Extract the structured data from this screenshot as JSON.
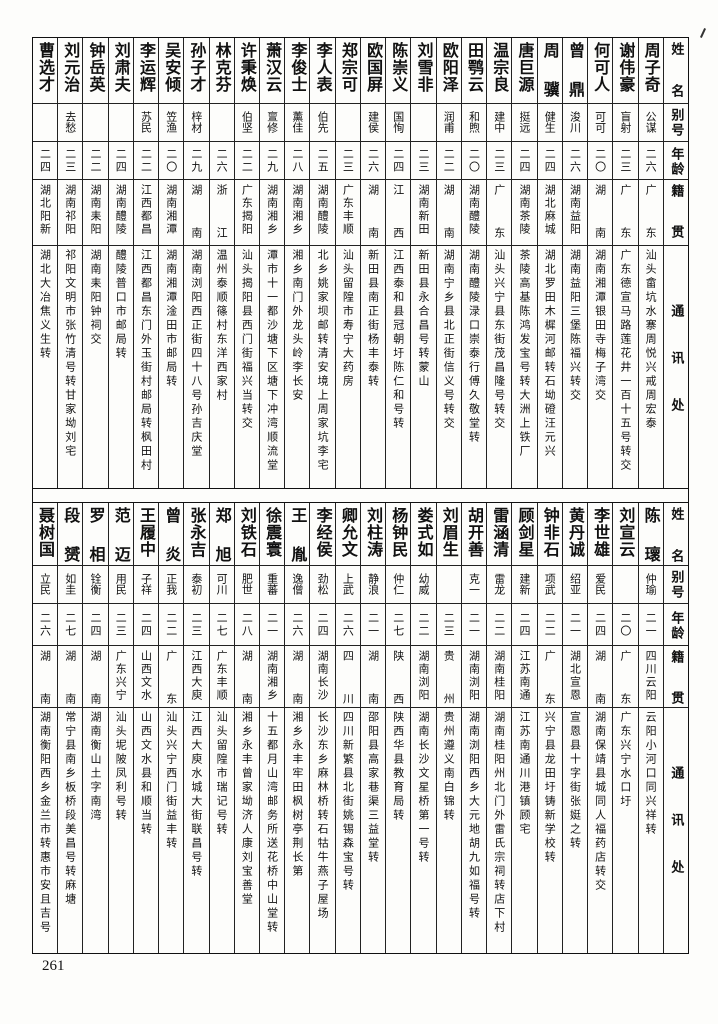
{
  "header": {
    "name": "姓名",
    "alias": "别号",
    "age": "年龄",
    "native": "籍贯",
    "address": "通讯处"
  },
  "tables": [
    {
      "rows": [
        {
          "name": "周子奇",
          "alias": "公谋",
          "age": "二六",
          "native": "广东",
          "address": "汕头畲坑水寨周悦兴戒周宏泰"
        },
        {
          "name": "谢伟豪",
          "alias": "盲射",
          "age": "二三",
          "native": "广东",
          "address": "广东德宣马路莲花井一百十五号转交"
        },
        {
          "name": "何可人",
          "alias": "可可",
          "age": "二〇",
          "native": "湖南",
          "address": "湖南湘潭银田寺梅子湾交"
        },
        {
          "name": "曾鼎",
          "alias": "浚川",
          "age": "二六",
          "native": "湖南益阳",
          "address": "湖南益阳三堡陈福兴转交"
        },
        {
          "name": "周骥",
          "alias": "健生",
          "age": "二四",
          "native": "湖北麻城",
          "address": "湖北罗田木樨河邮转石坳磴汪元兴"
        },
        {
          "name": "唐巨源",
          "alias": "挺远",
          "age": "二四",
          "native": "湖南茶陵",
          "address": "茶陵高基陈鸿发宝号转大洲上铁厂"
        },
        {
          "name": "温宗良",
          "alias": "建中",
          "age": "二三",
          "native": "广东",
          "address": "汕头兴宁县东街茂昌隆号转交"
        },
        {
          "name": "田鹗云",
          "alias": "和煦",
          "age": "二〇",
          "native": "湖南醴陵",
          "address": "湖南醴陵渌口崇泰行傅久敬堂转"
        },
        {
          "name": "欧阳泽",
          "alias": "润甫",
          "age": "二二",
          "native": "湖南",
          "address": "湖南宁乡县北正街信义号转交"
        },
        {
          "name": "刘雪非",
          "alias": "",
          "age": "二三",
          "native": "湖南新田",
          "address": "新田县永合昌号转蒙山"
        },
        {
          "name": "陈崇义",
          "alias": "国恂",
          "age": "二四",
          "native": "江西",
          "address": "江西泰和县冠朝圩陈仁和号转"
        },
        {
          "name": "欧国屏",
          "alias": "建侯",
          "age": "二六",
          "native": "湖南",
          "address": "新田县南正街杨丰泰转"
        },
        {
          "name": "郑宗可",
          "alias": "",
          "age": "二三",
          "native": "广东丰顺",
          "address": "汕头留隍市寿宁大药房"
        },
        {
          "name": "李人表",
          "alias": "伯先",
          "age": "二五",
          "native": "湖南醴陵",
          "address": "北乡姚家坝邮转清安境上周家坑李宅"
        },
        {
          "name": "李俊士",
          "alias": "薰佳",
          "age": "二八",
          "native": "湖南湘乡",
          "address": "湘乡南门外龙头岭李长安"
        },
        {
          "name": "萧汉云",
          "alias": "亶修",
          "age": "二九",
          "native": "湖南湘乡",
          "address": "潭市十一都沙塘下区塘下冲湾顺流堂"
        },
        {
          "name": "许秉焕",
          "alias": "伯坚",
          "age": "二二",
          "native": "广东揭阳",
          "address": "汕头揭阳县西门街福兴当转交"
        },
        {
          "name": "林克芬",
          "alias": "",
          "age": "二六",
          "native": "浙江",
          "address": "温州泰顺篠村东洋西家村"
        },
        {
          "name": "孙子才",
          "alias": "梓材",
          "age": "二九",
          "native": "湖南",
          "address": "湖南浏阳西正街四十八号孙吉庆堂"
        },
        {
          "name": "吴安倾",
          "alias": "笠渔",
          "age": "二〇",
          "native": "湖南湘潭",
          "address": "湖南湘潭淦田市邮局转"
        },
        {
          "name": "李运辉",
          "alias": "苏民",
          "age": "二二",
          "native": "江西都昌",
          "address": "江西都昌东门外玉街村邮局转枫田村"
        },
        {
          "name": "刘肃夫",
          "alias": "",
          "age": "二四",
          "native": "湖南醴陵",
          "address": "醴陵普口市邮局转"
        },
        {
          "name": "钟岳英",
          "alias": "",
          "age": "二二",
          "native": "湖南耒阳",
          "address": "湖南耒阳钟祠交"
        },
        {
          "name": "刘元治",
          "alias": "去愁",
          "age": "二三",
          "native": "湖南祁阳",
          "address": "祁阳文明市张竹清号转甘家坳刘宅"
        },
        {
          "name": "曹选才",
          "alias": "",
          "age": "二四",
          "native": "湖北阳新",
          "address": "湖北大冶焦义生转"
        }
      ]
    },
    {
      "rows": [
        {
          "name": "陈瓌",
          "alias": "仲瑜",
          "age": "二一",
          "native": "四川云阳",
          "address": "云阳小河口同兴祥转"
        },
        {
          "name": "刘宣云",
          "alias": "",
          "age": "二〇",
          "native": "广东",
          "address": "广东兴宁水口圩"
        },
        {
          "name": "李世雄",
          "alias": "爱民",
          "age": "二四",
          "native": "湖南",
          "address": "湖南保靖县城同人福药店转交"
        },
        {
          "name": "黄丹诚",
          "alias": "绍亚",
          "age": "二一",
          "native": "湖北宣恩",
          "address": "宣恩县十字街张娗之转"
        },
        {
          "name": "钟非石",
          "alias": "项武",
          "age": "二二",
          "native": "广东",
          "address": "兴宁县龙田圩铸新学校转"
        },
        {
          "name": "顾剑星",
          "alias": "建新",
          "age": "二四",
          "native": "江苏南通",
          "address": "江苏南通川港镇顾宅"
        },
        {
          "name": "雷涵清",
          "alias": "雷龙",
          "age": "二二",
          "native": "湖南桂阳",
          "address": "湖南桂阳州北门外雷氏宗祠转店下村"
        },
        {
          "name": "胡开善",
          "alias": "克一",
          "age": "二一",
          "native": "湖南浏阳",
          "address": "湖南浏阳西乡大元地胡九如福号转"
        },
        {
          "name": "刘眉生",
          "alias": "",
          "age": "二三",
          "native": "贵州",
          "address": "贵州遵义南白锦转"
        },
        {
          "name": "娄式如",
          "alias": "幼威",
          "age": "二二",
          "native": "湖南浏阳",
          "address": "湖南长沙文星桥第一号转"
        },
        {
          "name": "杨钟民",
          "alias": "仲仁",
          "age": "二七",
          "native": "陕西",
          "address": "陕西华县教育局转"
        },
        {
          "name": "刘柱涛",
          "alias": "静浪",
          "age": "二一",
          "native": "湖南",
          "address": "邵阳县高家巷渠三益堂转"
        },
        {
          "name": "卿允文",
          "alias": "上武",
          "age": "二六",
          "native": "四川",
          "address": "四川新繁县北街姚锡森宝号转"
        },
        {
          "name": "李经侯",
          "alias": "劲松",
          "age": "二四",
          "native": "湖南长沙",
          "address": "长沙东乡麻林桥转石牯牛燕子屋场"
        },
        {
          "name": "王胤",
          "alias": "逸僧",
          "age": "二六",
          "native": "湖南",
          "address": "湘乡永丰牢田枫树亭荆长第"
        },
        {
          "name": "徐震寰",
          "alias": "重蕃",
          "age": "二一",
          "native": "湖南湘乡",
          "address": "十五都月山湾邮务所送花桥中山堂转"
        },
        {
          "name": "刘铁石",
          "alias": "肥世",
          "age": "二八",
          "native": "湖南",
          "address": "湘乡永丰曾家坳济人康刘宝善堂"
        },
        {
          "name": "郑旭",
          "alias": "可川",
          "age": "二七",
          "native": "广东丰顺",
          "address": "汕头留隍市瑞记号转"
        },
        {
          "name": "张永吉",
          "alias": "泰初",
          "age": "二三",
          "native": "江西大庾",
          "address": "江西大庾水城大街联昌号转"
        },
        {
          "name": "曾炎",
          "alias": "正我",
          "age": "二二",
          "native": "广东",
          "address": "汕头兴宁西门街益丰转"
        },
        {
          "name": "王履中",
          "alias": "子祥",
          "age": "二四",
          "native": "山西文水",
          "address": "山西文水县和顺当转"
        },
        {
          "name": "范迈",
          "alias": "用民",
          "age": "二三",
          "native": "广东兴宁",
          "address": "汕头坭陂凤利号转"
        },
        {
          "name": "罗相",
          "alias": "铨衡",
          "age": "二四",
          "native": "湖南",
          "address": "湖南衡山土字南湾"
        },
        {
          "name": "段赟",
          "alias": "如圭",
          "age": "二七",
          "native": "湖南",
          "address": "常宁县南乡板桥段美昌号转麻塘"
        },
        {
          "name": "聂树国",
          "alias": "立民",
          "age": "二六",
          "native": "湖南",
          "address": "湖南衡阳西乡金兰市转惠市安且吉号"
        }
      ]
    }
  ],
  "page_number": "261"
}
